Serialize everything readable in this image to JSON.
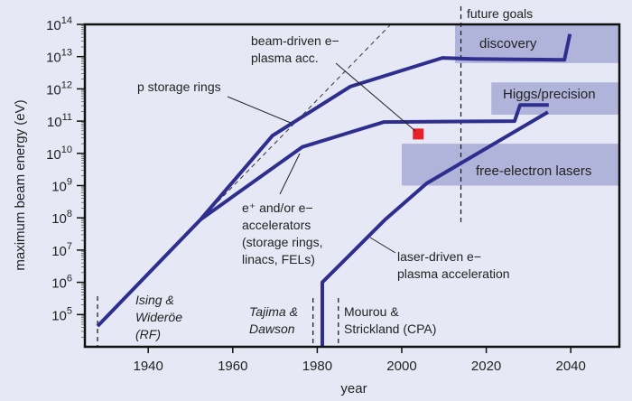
{
  "chart_data": {
    "type": "line",
    "title": "",
    "xlabel": "year",
    "ylabel": "maximum beam energy (eV)",
    "xlim": [
      1925,
      2051.5
    ],
    "ylim_log10": [
      4,
      14
    ],
    "y_scale": "log",
    "x_ticks": [
      "1940",
      "1960",
      "1980",
      "2000",
      "2020",
      "2040"
    ],
    "x_tick_values": [
      1940,
      1960,
      1980,
      2000,
      2020,
      2040
    ],
    "y_tick_base": "10",
    "y_tick_exponents": [
      "5",
      "6",
      "7",
      "8",
      "9",
      "10",
      "11",
      "12",
      "13",
      "14"
    ],
    "grid": false,
    "colors": {
      "line": "#2e2e8e",
      "band": "#b1b4da",
      "background": "#e6e9f5",
      "marker": "#e8202a"
    },
    "series": [
      {
        "name": "p storage rings",
        "x": [
          1928,
          1952.4,
          1969.4,
          1987.8,
          2009.6,
          2016.7,
          2038.5,
          2039.8
        ],
        "log10_y": [
          4.64,
          7.95,
          10.55,
          12.07,
          12.96,
          12.93,
          12.9,
          13.7
        ]
      },
      {
        "name": "e+ and/or e- accelerators",
        "x": [
          1952.4,
          1976.5,
          1995.7,
          2026.7,
          2028,
          2034.8
        ],
        "log10_y": [
          7.95,
          10.2,
          10.97,
          11.0,
          11.5,
          11.5
        ]
      },
      {
        "name": "laser-driven e- plasma acceleration",
        "x": [
          1981.2,
          1981.2,
          1996.1,
          2005.9,
          2034.6
        ],
        "log10_y": [
          4.0,
          6.0,
          7.95,
          9.07,
          11.28
        ]
      }
    ],
    "points": [
      {
        "name": "beam-driven e- plasma acc.",
        "x": 2003.9,
        "log10_y": 10.6
      }
    ],
    "trend_line": {
      "x": [
        1952.4,
        1997.4
      ],
      "log10_y": [
        7.95,
        14
      ]
    },
    "vertical_markers": [
      {
        "x": 1928,
        "label": [
          "Ising &",
          "Wideröe",
          "(RF)"
        ]
      },
      {
        "x": 1979,
        "label": [
          "Tajima &",
          "Dawson"
        ]
      },
      {
        "x": 1985,
        "label": [
          "Mourou &",
          "Strickland (CPA)"
        ]
      },
      {
        "x": 2014,
        "label": [
          "future goals"
        ]
      }
    ],
    "bands": [
      {
        "label": "discovery",
        "x": [
          2012.6,
          2051.5
        ],
        "log10_y": [
          12.8,
          14
        ]
      },
      {
        "label": "Higgs/precision",
        "x": [
          2021.2,
          2051.5
        ],
        "log10_y": [
          11.2,
          12.2
        ]
      },
      {
        "label": "free-electron lasers",
        "x": [
          2000,
          2051.5
        ],
        "log10_y": [
          9.0,
          10.3
        ]
      }
    ],
    "annotations": [
      [
        "p storage rings"
      ],
      [
        "beam-driven e−",
        "plasma acc."
      ],
      [
        "e⁺ and/or e−",
        "accelerators",
        "(storage rings,",
        "linacs, FELs)"
      ],
      [
        "laser-driven e−",
        "plasma acceleration"
      ]
    ]
  }
}
